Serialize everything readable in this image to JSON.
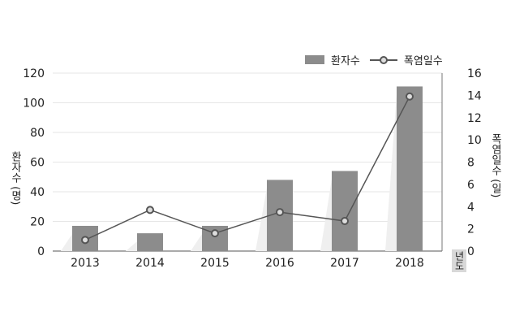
{
  "chart_data": {
    "type": "bar",
    "categories": [
      "2013",
      "2014",
      "2015",
      "2016",
      "2017",
      "2018"
    ],
    "series": [
      {
        "name": "환자수",
        "type": "bar",
        "axis": "left",
        "values": [
          17,
          12,
          17,
          48,
          54,
          111
        ]
      },
      {
        "name": "폭염일수",
        "type": "line",
        "axis": "right",
        "values": [
          1.0,
          3.7,
          1.6,
          3.5,
          2.7,
          13.9
        ]
      }
    ],
    "ylabel_left": "환자수 (명)",
    "ylabel_right": "폭염일수 (일)",
    "xlabel": "년도",
    "ylim_left": [
      0,
      120
    ],
    "yticks_left": [
      0,
      20,
      40,
      60,
      80,
      100,
      120
    ],
    "ylim_right": [
      0,
      16
    ],
    "yticks_right": [
      0,
      2,
      4,
      6,
      8,
      10,
      12,
      14,
      16
    ],
    "grid": true,
    "legend": "top-right",
    "colors": {
      "bar": "#8c8c8c",
      "line": "#555555",
      "marker_fill": "#dddddd",
      "grid": "#e6e6e6"
    }
  }
}
